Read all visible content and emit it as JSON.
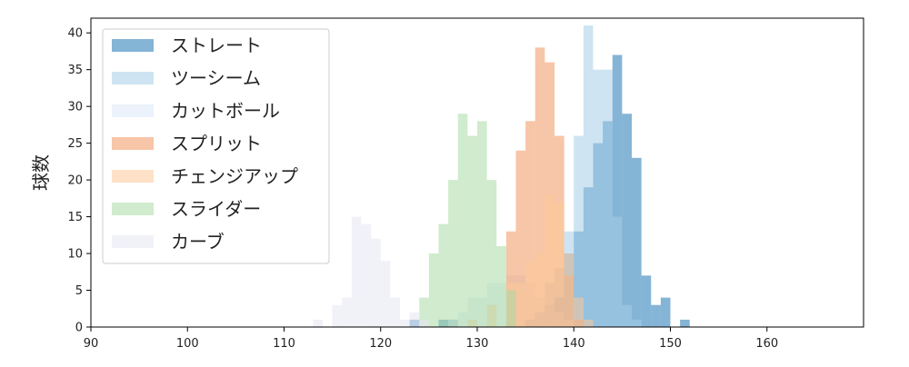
{
  "chart_data": {
    "type": "histogram",
    "ylabel": "球数",
    "xlabel": "",
    "xlim": [
      90,
      170
    ],
    "ylim": [
      0,
      42
    ],
    "x_ticks": [
      90,
      100,
      110,
      120,
      130,
      140,
      150,
      160
    ],
    "y_ticks": [
      0,
      5,
      10,
      15,
      20,
      25,
      30,
      35,
      40
    ],
    "bin_width": 1,
    "legend_position": "top-left",
    "grid": false,
    "series": [
      {
        "name": "ストレート",
        "color": "#1f77b4",
        "bins": [
          {
            "x": 123,
            "count": 1
          },
          {
            "x": 126,
            "count": 1
          },
          {
            "x": 127,
            "count": 1
          },
          {
            "x": 135,
            "count": 1
          },
          {
            "x": 136,
            "count": 2
          },
          {
            "x": 137,
            "count": 3
          },
          {
            "x": 138,
            "count": 4
          },
          {
            "x": 139,
            "count": 10
          },
          {
            "x": 140,
            "count": 13
          },
          {
            "x": 141,
            "count": 19
          },
          {
            "x": 142,
            "count": 25
          },
          {
            "x": 143,
            "count": 28
          },
          {
            "x": 144,
            "count": 37
          },
          {
            "x": 145,
            "count": 29
          },
          {
            "x": 146,
            "count": 23
          },
          {
            "x": 147,
            "count": 7
          },
          {
            "x": 148,
            "count": 3
          },
          {
            "x": 149,
            "count": 4
          },
          {
            "x": 150,
            "count": 0
          },
          {
            "x": 151,
            "count": 1
          }
        ]
      },
      {
        "name": "ツーシーム",
        "color": "#a6cde8",
        "bins": [
          {
            "x": 135,
            "count": 1
          },
          {
            "x": 136,
            "count": 2
          },
          {
            "x": 137,
            "count": 6
          },
          {
            "x": 138,
            "count": 8
          },
          {
            "x": 139,
            "count": 13
          },
          {
            "x": 140,
            "count": 26
          },
          {
            "x": 141,
            "count": 41
          },
          {
            "x": 142,
            "count": 35
          },
          {
            "x": 143,
            "count": 35
          },
          {
            "x": 144,
            "count": 15
          },
          {
            "x": 145,
            "count": 3
          },
          {
            "x": 146,
            "count": 1
          }
        ]
      },
      {
        "name": "カットボール",
        "color": "#dbe8f7",
        "bins": [
          {
            "x": 127,
            "count": 1
          },
          {
            "x": 128,
            "count": 2
          },
          {
            "x": 129,
            "count": 4
          },
          {
            "x": 130,
            "count": 4
          },
          {
            "x": 131,
            "count": 6
          },
          {
            "x": 132,
            "count": 6
          },
          {
            "x": 133,
            "count": 7
          },
          {
            "x": 134,
            "count": 7
          },
          {
            "x": 135,
            "count": 6
          },
          {
            "x": 136,
            "count": 4
          },
          {
            "x": 137,
            "count": 4
          },
          {
            "x": 138,
            "count": 2
          },
          {
            "x": 139,
            "count": 1
          }
        ]
      },
      {
        "name": "スプリット",
        "color": "#f0955f",
        "bins": [
          {
            "x": 133,
            "count": 13
          },
          {
            "x": 134,
            "count": 24
          },
          {
            "x": 135,
            "count": 28
          },
          {
            "x": 136,
            "count": 38
          },
          {
            "x": 137,
            "count": 36
          },
          {
            "x": 138,
            "count": 26
          },
          {
            "x": 139,
            "count": 7
          },
          {
            "x": 140,
            "count": 1
          }
        ]
      },
      {
        "name": "チェンジアップ",
        "color": "#fdc998",
        "bins": [
          {
            "x": 129,
            "count": 1
          },
          {
            "x": 131,
            "count": 3
          },
          {
            "x": 133,
            "count": 6
          },
          {
            "x": 134,
            "count": 6
          },
          {
            "x": 135,
            "count": 9
          },
          {
            "x": 136,
            "count": 10
          },
          {
            "x": 137,
            "count": 18
          },
          {
            "x": 138,
            "count": 17
          },
          {
            "x": 139,
            "count": 10
          },
          {
            "x": 140,
            "count": 4
          },
          {
            "x": 141,
            "count": 1
          }
        ]
      },
      {
        "name": "スライダー",
        "color": "#aadba4",
        "bins": [
          {
            "x": 124,
            "count": 4
          },
          {
            "x": 125,
            "count": 10
          },
          {
            "x": 126,
            "count": 14
          },
          {
            "x": 127,
            "count": 20
          },
          {
            "x": 128,
            "count": 29
          },
          {
            "x": 129,
            "count": 26
          },
          {
            "x": 130,
            "count": 28
          },
          {
            "x": 131,
            "count": 20
          },
          {
            "x": 132,
            "count": 11
          },
          {
            "x": 133,
            "count": 5
          }
        ]
      },
      {
        "name": "カーブ",
        "color": "#e6e6f2",
        "bins": [
          {
            "x": 113,
            "count": 1
          },
          {
            "x": 115,
            "count": 3
          },
          {
            "x": 116,
            "count": 4
          },
          {
            "x": 117,
            "count": 15
          },
          {
            "x": 118,
            "count": 14
          },
          {
            "x": 119,
            "count": 12
          },
          {
            "x": 120,
            "count": 9
          },
          {
            "x": 121,
            "count": 4
          },
          {
            "x": 122,
            "count": 1
          },
          {
            "x": 123,
            "count": 2
          },
          {
            "x": 124,
            "count": 1
          }
        ]
      }
    ]
  }
}
